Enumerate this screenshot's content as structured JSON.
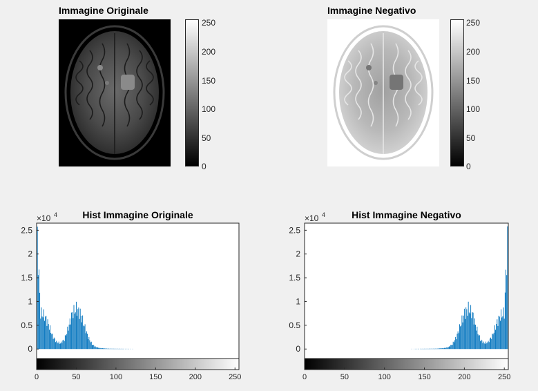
{
  "window": {
    "background": "#f0f0f0"
  },
  "panels": {
    "orig_image": {
      "title": "Immagine Originale"
    },
    "neg_image": {
      "title": "Immagine Negativo"
    }
  },
  "colorbar": {
    "ticks": [
      "0",
      "50",
      "100",
      "150",
      "200",
      "250"
    ],
    "range": [
      0,
      255
    ],
    "colormap": "gray"
  },
  "chart_data": [
    {
      "type": "bar",
      "title": "Hist Immagine Originale",
      "xlabel": "",
      "ylabel": "",
      "y_exponent_label": "×10",
      "y_exponent": "4",
      "xlim": [
        0,
        255
      ],
      "ylim": [
        -2000,
        26500
      ],
      "xticks": [
        "0",
        "50",
        "100",
        "150",
        "200",
        "250"
      ],
      "yticks": [
        "0",
        "0.5",
        "1",
        "1.5",
        "2",
        "2.5"
      ],
      "bar_color": "#0072bd",
      "x": [
        0,
        5,
        10,
        15,
        20,
        25,
        30,
        35,
        40,
        45,
        50,
        55,
        60,
        65,
        70,
        75,
        80,
        90,
        100,
        120,
        150,
        200,
        255
      ],
      "values": [
        26500,
        7600,
        7000,
        5200,
        2800,
        1500,
        1200,
        2000,
        4500,
        7500,
        8500,
        7500,
        5000,
        2500,
        1000,
        400,
        200,
        80,
        60,
        40,
        20,
        10,
        0
      ]
    },
    {
      "type": "bar",
      "title": "Hist Immagine Negativo",
      "xlabel": "",
      "ylabel": "",
      "y_exponent_label": "×10",
      "y_exponent": "4",
      "xlim": [
        0,
        255
      ],
      "ylim": [
        -2000,
        26500
      ],
      "xticks": [
        "0",
        "50",
        "100",
        "150",
        "200",
        "250"
      ],
      "yticks": [
        "0",
        "0.5",
        "1",
        "1.5",
        "2",
        "2.5"
      ],
      "bar_color": "#0072bd",
      "x": [
        0,
        55,
        105,
        135,
        155,
        165,
        175,
        180,
        185,
        190,
        195,
        200,
        205,
        210,
        215,
        220,
        225,
        230,
        235,
        240,
        245,
        250,
        255
      ],
      "values": [
        0,
        10,
        20,
        40,
        60,
        80,
        200,
        400,
        1000,
        2500,
        5000,
        7500,
        8500,
        7500,
        4500,
        2000,
        1200,
        1500,
        2800,
        5200,
        7000,
        7600,
        26500
      ]
    }
  ]
}
